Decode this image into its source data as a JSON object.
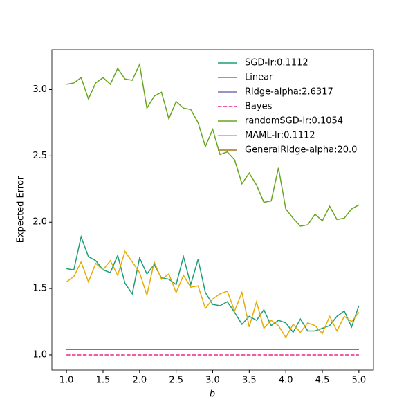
{
  "chart_data": {
    "type": "line",
    "xlabel": "b",
    "ylabel": "Expected Error",
    "x": [
      1.0,
      1.1,
      1.2,
      1.3,
      1.4,
      1.5,
      1.6,
      1.7,
      1.8,
      1.9,
      2.0,
      2.1,
      2.2,
      2.3,
      2.4,
      2.5,
      2.6,
      2.7,
      2.8,
      2.9,
      3.0,
      3.1,
      3.2,
      3.3,
      3.4,
      3.5,
      3.6,
      3.7,
      3.8,
      3.9,
      4.0,
      4.1,
      4.2,
      4.3,
      4.4,
      4.5,
      4.6,
      4.7,
      4.8,
      4.9,
      5.0
    ],
    "xlim": [
      0.8,
      5.2
    ],
    "xticks": [
      {
        "value": 1,
        "label": "1.0"
      },
      {
        "value": 1.5,
        "label": "1.5"
      },
      {
        "value": 2,
        "label": "2.0"
      },
      {
        "value": 2.5,
        "label": "2.5"
      },
      {
        "value": 3,
        "label": "3.0"
      },
      {
        "value": 3.5,
        "label": "3.5"
      },
      {
        "value": 4,
        "label": "4.0"
      },
      {
        "value": 4.5,
        "label": "4.5"
      },
      {
        "value": 5,
        "label": "5.0"
      }
    ],
    "ylim": [
      0.885,
      3.3
    ],
    "yticks": [
      {
        "value": 1,
        "label": "1.0"
      },
      {
        "value": 1.5,
        "label": "1.5"
      },
      {
        "value": 2,
        "label": "2.0"
      },
      {
        "value": 2.5,
        "label": "2.5"
      },
      {
        "value": 3,
        "label": "3.0"
      }
    ],
    "legend": "upper right",
    "series": [
      {
        "name": "SGD-lr:0.1112",
        "color": "#1b9e77",
        "values": [
          1.65,
          1.64,
          1.89,
          1.74,
          1.71,
          1.64,
          1.62,
          1.75,
          1.54,
          1.46,
          1.73,
          1.61,
          1.68,
          1.58,
          1.57,
          1.53,
          1.74,
          1.53,
          1.72,
          1.47,
          1.38,
          1.37,
          1.4,
          1.32,
          1.23,
          1.29,
          1.26,
          1.34,
          1.22,
          1.26,
          1.24,
          1.17,
          1.27,
          1.18,
          1.18,
          1.2,
          1.22,
          1.29,
          1.33,
          1.21,
          1.37
        ]
      },
      {
        "name": "Linear",
        "color": "#d95f02",
        "values": [
          1.04,
          1.04,
          1.04,
          1.04,
          1.04,
          1.04,
          1.04,
          1.04,
          1.04,
          1.04,
          1.04,
          1.04,
          1.04,
          1.04,
          1.04,
          1.04,
          1.04,
          1.04,
          1.04,
          1.04,
          1.04,
          1.04,
          1.04,
          1.04,
          1.04,
          1.04,
          1.04,
          1.04,
          1.04,
          1.04,
          1.04,
          1.04,
          1.04,
          1.04,
          1.04,
          1.04,
          1.04,
          1.04,
          1.04,
          1.04,
          1.04
        ]
      },
      {
        "name": "Ridge-alpha:2.6317",
        "color": "#7570b3",
        "values": [
          1.04,
          1.04,
          1.04,
          1.04,
          1.04,
          1.04,
          1.04,
          1.04,
          1.04,
          1.04,
          1.04,
          1.04,
          1.04,
          1.04,
          1.04,
          1.04,
          1.04,
          1.04,
          1.04,
          1.04,
          1.04,
          1.04,
          1.04,
          1.04,
          1.04,
          1.04,
          1.04,
          1.04,
          1.04,
          1.04,
          1.04,
          1.04,
          1.04,
          1.04,
          1.04,
          1.04,
          1.04,
          1.04,
          1.04,
          1.04,
          1.04
        ]
      },
      {
        "name": "Bayes",
        "color": "#e7298a",
        "dashed": true,
        "values": [
          1,
          1,
          1,
          1,
          1,
          1,
          1,
          1,
          1,
          1,
          1,
          1,
          1,
          1,
          1,
          1,
          1,
          1,
          1,
          1,
          1,
          1,
          1,
          1,
          1,
          1,
          1,
          1,
          1,
          1,
          1,
          1,
          1,
          1,
          1,
          1,
          1,
          1,
          1,
          1,
          1
        ]
      },
      {
        "name": "randomSGD-lr:0.1054",
        "color": "#66a61e",
        "values": [
          3.04,
          3.05,
          3.09,
          2.93,
          3.05,
          3.09,
          3.04,
          3.16,
          3.08,
          3.07,
          3.19,
          2.86,
          2.95,
          2.98,
          2.78,
          2.91,
          2.86,
          2.85,
          2.75,
          2.57,
          2.7,
          2.51,
          2.53,
          2.47,
          2.29,
          2.37,
          2.28,
          2.15,
          2.16,
          2.41,
          2.1,
          2.03,
          1.97,
          1.98,
          2.06,
          2.01,
          2.12,
          2.02,
          2.03,
          2.1,
          2.13
        ]
      },
      {
        "name": "MAML-lr:0.1112",
        "color": "#e6ab02",
        "values": [
          1.55,
          1.59,
          1.7,
          1.55,
          1.69,
          1.64,
          1.71,
          1.6,
          1.78,
          1.7,
          1.62,
          1.45,
          1.7,
          1.57,
          1.61,
          1.47,
          1.6,
          1.51,
          1.52,
          1.35,
          1.42,
          1.46,
          1.48,
          1.33,
          1.47,
          1.21,
          1.4,
          1.2,
          1.26,
          1.22,
          1.13,
          1.23,
          1.17,
          1.24,
          1.22,
          1.16,
          1.29,
          1.18,
          1.29,
          1.25,
          1.32
        ]
      },
      {
        "name": "GeneralRidge-alpha:20.0",
        "color": "#a6761d",
        "values": [
          1.04,
          1.04,
          1.04,
          1.04,
          1.04,
          1.04,
          1.04,
          1.04,
          1.04,
          1.04,
          1.04,
          1.04,
          1.04,
          1.04,
          1.04,
          1.04,
          1.04,
          1.04,
          1.04,
          1.04,
          1.04,
          1.04,
          1.04,
          1.04,
          1.04,
          1.04,
          1.04,
          1.04,
          1.04,
          1.04,
          1.04,
          1.04,
          1.04,
          1.04,
          1.04,
          1.04,
          1.04,
          1.04,
          1.04,
          1.04,
          1.04
        ]
      }
    ]
  }
}
